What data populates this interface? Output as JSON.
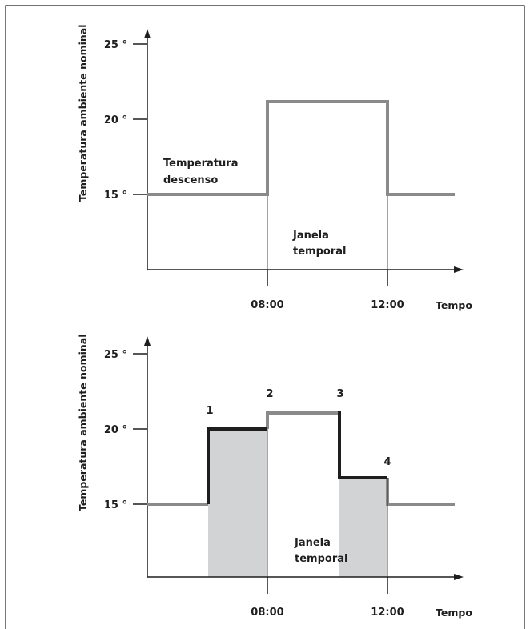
{
  "colors": {
    "schedule_line": "#8a8a8a",
    "actual_line": "#1e1e1e",
    "shade": "#d2d3d4",
    "axis": "#1e1e1e"
  },
  "diagram_top": {
    "y_axis_label": "Temperatura ambiente nominal",
    "y_ticks": [
      "25 °",
      "20 °",
      "15 °"
    ],
    "x_ticks": [
      "08:00",
      "12:00"
    ],
    "x_axis_label": "Tempo",
    "label_setback_line1": "Temperatura",
    "label_setback_line2": "descenso",
    "label_window_line1": "Janela",
    "label_window_line2": "temporal"
  },
  "diagram_bottom": {
    "y_axis_label": "Temperatura ambiente nominal",
    "y_ticks": [
      "25 °",
      "20 °",
      "15 °"
    ],
    "x_ticks": [
      "08:00",
      "12:00"
    ],
    "x_axis_label": "Tempo",
    "label_window_line1": "Janela",
    "label_window_line2": "temporal",
    "points": [
      "1",
      "2",
      "3",
      "4"
    ]
  }
}
